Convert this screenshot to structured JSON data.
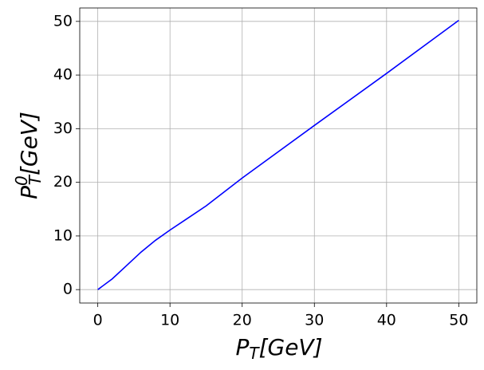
{
  "chart_data": {
    "type": "line",
    "xlabel": {
      "main": "P",
      "sub": "T",
      "tail": "[GeV]"
    },
    "ylabel": {
      "main": "P",
      "sub": "T",
      "sup": "0",
      "tail": "[GeV]"
    },
    "x": [
      0,
      2,
      4,
      6,
      8,
      10,
      12,
      15,
      20,
      30,
      40,
      50
    ],
    "series": [
      {
        "color": "#0000ff",
        "values": [
          0,
          2,
          4.5,
          7,
          9.2,
          11.1,
          12.9,
          15.6,
          20.8,
          30.6,
          40.3,
          50.2
        ]
      }
    ],
    "xlim": [
      -2.5,
      52.5
    ],
    "xticks": [
      0,
      10,
      20,
      30,
      40,
      50
    ],
    "ylim": [
      -2.5,
      52.5
    ],
    "yticks": [
      0,
      10,
      20,
      30,
      40,
      50
    ],
    "grid": true
  }
}
